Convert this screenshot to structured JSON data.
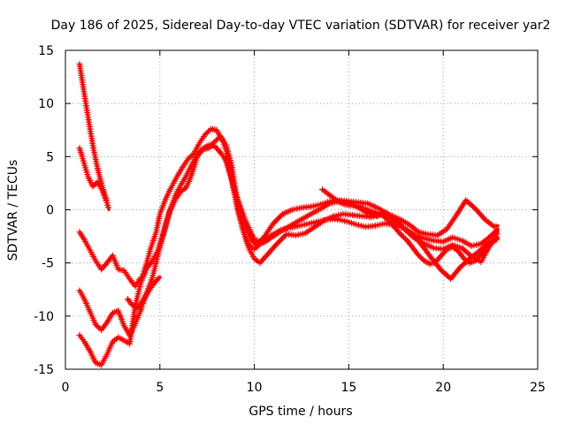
{
  "chart_data": {
    "type": "scatter",
    "title": "Day 186 of 2025, Sidereal Day-to-day VTEC variation (SDTVAR) for receiver yar2",
    "xlabel": "GPS time / hours",
    "ylabel": "SDTVAR / TECUs",
    "xlim": [
      0,
      25
    ],
    "ylim": [
      -15,
      15
    ],
    "xticks": [
      0,
      5,
      10,
      15,
      20,
      25
    ],
    "yticks": [
      -15,
      -10,
      -5,
      0,
      5,
      10,
      15
    ],
    "grid": true,
    "marker": "plus",
    "color": "#ff0000",
    "series": [
      {
        "name": "s1",
        "x": [
          0.75,
          0.9,
          1.1,
          1.3,
          1.5,
          1.7,
          1.9,
          2.1,
          2.3
        ],
        "y": [
          13.7,
          12.0,
          9.8,
          7.6,
          5.6,
          3.9,
          2.5,
          1.3,
          0.0
        ]
      },
      {
        "name": "s2",
        "x": [
          0.75,
          0.95,
          1.2,
          1.45,
          1.7,
          1.95,
          2.2
        ],
        "y": [
          5.8,
          4.6,
          3.1,
          2.2,
          2.6,
          1.8,
          0.7
        ]
      },
      {
        "name": "s3",
        "x": [
          0.75,
          1.0,
          1.3,
          1.6,
          1.9,
          2.2,
          2.5,
          2.8,
          3.1,
          3.4,
          3.7,
          3.9,
          4.1,
          4.3,
          4.5,
          4.8,
          5.0,
          5.3,
          5.6,
          5.9,
          6.2,
          6.5,
          6.8,
          7.1,
          7.4,
          7.7,
          8.0,
          8.3,
          8.6,
          8.9,
          9.2,
          9.5,
          9.8,
          10.1,
          10.5,
          11.0,
          11.5,
          12.0,
          12.5,
          13.0,
          13.5,
          14.0,
          14.5,
          15.0,
          15.5,
          16.0,
          16.5,
          17.0,
          17.5,
          18.0,
          18.5,
          19.0,
          19.5,
          20.0,
          20.5,
          21.0,
          21.5,
          22.0,
          22.5,
          22.9
        ],
        "y": [
          -2.1,
          -2.8,
          -3.8,
          -4.8,
          -5.6,
          -5.0,
          -4.3,
          -5.6,
          -5.7,
          -6.5,
          -7.2,
          -6.6,
          -6.2,
          -5.0,
          -3.7,
          -2.1,
          -0.4,
          1.0,
          2.1,
          3.1,
          4.0,
          4.8,
          5.3,
          6.3,
          7.1,
          7.6,
          7.5,
          6.6,
          5.1,
          2.1,
          0.4,
          -1.4,
          -2.7,
          -3.3,
          -2.6,
          -1.3,
          -0.4,
          0.0,
          0.2,
          0.3,
          0.5,
          0.8,
          0.9,
          0.8,
          0.7,
          0.6,
          0.2,
          -0.3,
          -1.2,
          -1.8,
          -2.4,
          -2.7,
          -2.9,
          -3.0,
          -2.6,
          -2.9,
          -3.4,
          -3.2,
          -2.5,
          -1.8
        ]
      },
      {
        "name": "s4",
        "x": [
          0.75,
          1.0,
          1.3,
          1.6,
          1.9,
          2.2,
          2.5,
          2.8,
          3.1,
          3.4,
          3.7,
          4.0,
          4.3,
          4.6,
          4.9,
          5.2,
          5.5,
          5.8,
          6.1,
          6.4,
          6.7,
          7.0,
          7.3,
          7.6,
          7.9,
          8.2,
          8.5,
          8.8,
          9.1,
          9.4,
          9.7,
          10.0,
          10.3,
          10.7,
          11.2,
          11.7,
          12.2,
          12.7,
          13.2,
          13.7,
          14.2,
          14.7,
          15.2,
          15.7,
          16.2,
          16.7,
          17.2,
          17.7,
          18.2,
          18.7,
          19.2,
          19.7,
          20.2,
          20.7,
          21.2,
          21.7,
          22.2,
          22.7,
          22.9
        ],
        "y": [
          -7.6,
          -8.4,
          -9.6,
          -10.8,
          -11.3,
          -10.6,
          -9.7,
          -9.5,
          -10.9,
          -11.8,
          -10.7,
          -9.4,
          -7.8,
          -6.4,
          -4.2,
          -2.1,
          -0.2,
          0.9,
          1.7,
          2.1,
          3.4,
          5.1,
          5.7,
          5.8,
          6.4,
          6.9,
          6.1,
          4.2,
          0.6,
          -1.9,
          -3.6,
          -4.6,
          -5.0,
          -4.2,
          -3.2,
          -2.3,
          -2.4,
          -2.2,
          -1.6,
          -1.0,
          -0.6,
          -0.4,
          -0.5,
          -0.6,
          -0.7,
          -0.4,
          -0.5,
          -0.9,
          -1.4,
          -2.1,
          -2.3,
          -2.4,
          -1.8,
          -0.5,
          0.9,
          0.1,
          -0.9,
          -1.6,
          -1.5
        ]
      },
      {
        "name": "s5",
        "x": [
          0.75,
          1.0,
          1.3,
          1.6,
          1.9,
          2.2,
          2.5,
          2.8,
          3.1,
          3.4,
          3.7,
          4.0,
          4.3,
          4.6,
          4.9,
          5.2,
          5.5,
          5.8,
          6.1,
          6.4,
          6.7,
          7.0,
          7.3,
          7.6,
          7.9,
          8.2,
          8.5,
          8.8,
          9.1,
          9.4,
          9.7,
          10.0,
          10.4,
          10.9,
          11.4,
          11.9,
          12.4,
          12.9,
          13.4,
          13.9,
          14.4,
          14.9,
          15.4,
          15.9,
          16.4,
          16.9,
          17.4,
          17.9,
          18.4,
          18.9,
          19.4,
          19.9,
          20.4,
          20.9,
          21.4,
          21.9,
          22.4,
          22.9
        ],
        "y": [
          -11.8,
          -12.4,
          -13.3,
          -14.4,
          -14.6,
          -13.6,
          -12.4,
          -12.0,
          -12.3,
          -12.6,
          -9.0,
          -6.8,
          -5.5,
          -4.8,
          -3.8,
          -2.2,
          -0.3,
          1.3,
          2.3,
          3.2,
          4.3,
          5.3,
          5.8,
          6.1,
          6.0,
          5.4,
          4.6,
          2.9,
          0.1,
          -1.9,
          -3.3,
          -3.7,
          -3.1,
          -2.4,
          -1.9,
          -1.7,
          -1.5,
          -1.3,
          -1.1,
          -0.9,
          -0.9,
          -1.1,
          -1.4,
          -1.6,
          -1.5,
          -1.3,
          -1.4,
          -1.7,
          -2.3,
          -3.4,
          -4.6,
          -5.7,
          -6.5,
          -5.4,
          -4.6,
          -3.9,
          -3.1,
          -2.6
        ]
      },
      {
        "name": "s6",
        "x": [
          3.3,
          3.5,
          3.8,
          4.1,
          4.4,
          4.7,
          5.0
        ],
        "y": [
          -8.4,
          -8.9,
          -9.3,
          -8.5,
          -7.7,
          -6.9,
          -6.3
        ]
      },
      {
        "name": "s7",
        "x": [
          8.5,
          9.0,
          9.5,
          10.0,
          10.5,
          11.0,
          11.5,
          12.0,
          12.5,
          13.0,
          13.5,
          14.0,
          14.5,
          15.0,
          15.5,
          16.0,
          16.5,
          17.0,
          17.5,
          18.0,
          18.5,
          19.0,
          19.5,
          20.0,
          20.5,
          21.0,
          21.5,
          22.0,
          22.5,
          22.9
        ],
        "y": [
          4.9,
          1.6,
          -0.9,
          -2.8,
          -3.1,
          -2.5,
          -1.9,
          -1.4,
          -0.9,
          -0.4,
          0.1,
          0.6,
          0.8,
          0.7,
          0.2,
          -0.3,
          -0.6,
          -0.3,
          -1.0,
          -1.9,
          -2.7,
          -3.2,
          -3.6,
          -3.7,
          -3.3,
          -3.6,
          -4.4,
          -4.9,
          -3.3,
          -2.1
        ]
      },
      {
        "name": "s8",
        "x": [
          13.6,
          13.9,
          14.2,
          14.5,
          14.8,
          15.1,
          15.4,
          15.7,
          16.0,
          16.3,
          16.6,
          16.9,
          17.2,
          17.5,
          17.8,
          18.1,
          18.4,
          18.7,
          19.0,
          19.3,
          19.6,
          19.9,
          20.2,
          20.5,
          20.8,
          21.1,
          21.4,
          21.7,
          22.0,
          22.3,
          22.6,
          22.9
        ],
        "y": [
          1.9,
          1.5,
          1.1,
          0.7,
          0.5,
          0.4,
          0.4,
          0.2,
          0.0,
          -0.2,
          -0.3,
          -0.7,
          -1.2,
          -1.8,
          -2.4,
          -2.9,
          -3.6,
          -4.3,
          -4.8,
          -5.1,
          -4.9,
          -4.3,
          -3.7,
          -3.5,
          -3.9,
          -4.6,
          -5.0,
          -4.8,
          -4.2,
          -3.6,
          -3.1,
          -2.7
        ]
      }
    ]
  }
}
